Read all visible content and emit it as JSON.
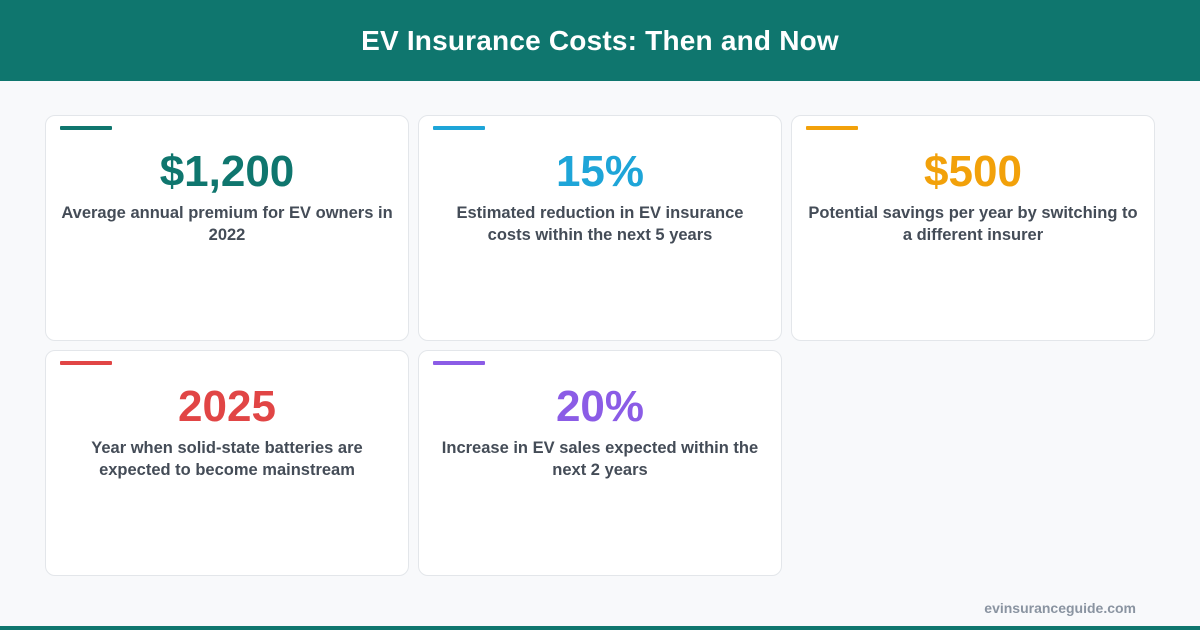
{
  "header": {
    "title": "EV Insurance Costs: Then and Now"
  },
  "stats": [
    {
      "value": "$1,200",
      "description": "Average annual premium for EV owners in 2022",
      "color": "#0f766e"
    },
    {
      "value": "15%",
      "description": "Estimated reduction in EV insurance costs within the next 5 years",
      "color": "#1ea5d8"
    },
    {
      "value": "$500",
      "description": "Potential savings per year by switching to a different insurer",
      "color": "#f2a10a"
    },
    {
      "value": "2025",
      "description": "Year when solid-state batteries are expected to become mainstream",
      "color": "#e14545"
    },
    {
      "value": "20%",
      "description": "Increase in EV sales expected within the next 2 years",
      "color": "#8b5ce6"
    }
  ],
  "footer": {
    "site": "evinsuranceguide.com"
  }
}
